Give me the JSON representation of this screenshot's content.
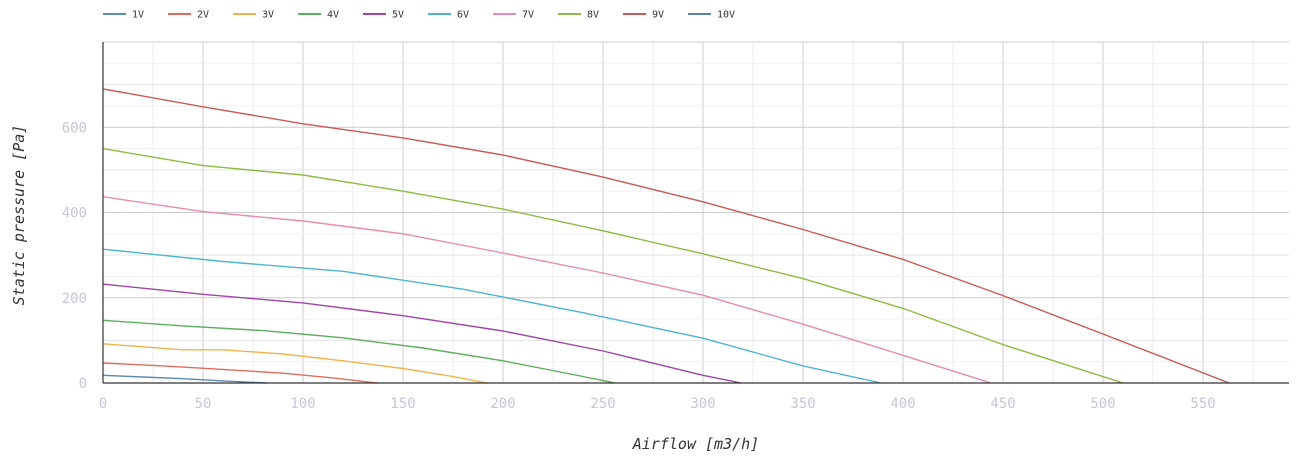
{
  "chart_data": {
    "type": "line",
    "xlabel": "Airflow [m3/h]",
    "ylabel": "Static pressure [Pa]",
    "xlim": [
      0,
      593
    ],
    "ylim": [
      0,
      800
    ],
    "x_ticks": [
      0,
      50,
      100,
      150,
      200,
      250,
      300,
      350,
      400,
      450,
      500,
      550
    ],
    "y_ticks": [
      0,
      200,
      400,
      600
    ],
    "grid": true,
    "legend_position": "top-left",
    "series": [
      {
        "name": "1V",
        "color": "#5b8ab5",
        "points": [
          [
            0,
            18
          ],
          [
            20,
            14
          ],
          [
            40,
            10
          ],
          [
            60,
            5
          ],
          [
            82,
            0
          ]
        ]
      },
      {
        "name": "2V",
        "color": "#e06c5f",
        "points": [
          [
            0,
            47
          ],
          [
            30,
            40
          ],
          [
            60,
            32
          ],
          [
            90,
            23
          ],
          [
            115,
            12
          ],
          [
            137,
            0
          ]
        ]
      },
      {
        "name": "3V",
        "color": "#f0b34c",
        "points": [
          [
            0,
            92
          ],
          [
            40,
            78
          ],
          [
            60,
            78
          ],
          [
            90,
            68
          ],
          [
            120,
            52
          ],
          [
            150,
            34
          ],
          [
            175,
            15
          ],
          [
            192,
            0
          ]
        ]
      },
      {
        "name": "4V",
        "color": "#5cae5c",
        "points": [
          [
            0,
            147
          ],
          [
            40,
            134
          ],
          [
            80,
            123
          ],
          [
            120,
            106
          ],
          [
            160,
            82
          ],
          [
            200,
            52
          ],
          [
            235,
            20
          ],
          [
            256,
            0
          ]
        ]
      },
      {
        "name": "5V",
        "color": "#a045a8",
        "points": [
          [
            0,
            232
          ],
          [
            50,
            208
          ],
          [
            100,
            188
          ],
          [
            150,
            158
          ],
          [
            200,
            122
          ],
          [
            250,
            75
          ],
          [
            300,
            18
          ],
          [
            319,
            0
          ]
        ]
      },
      {
        "name": "6V",
        "color": "#4fb4d0",
        "points": [
          [
            0,
            314
          ],
          [
            60,
            285
          ],
          [
            120,
            262
          ],
          [
            180,
            220
          ],
          [
            240,
            165
          ],
          [
            300,
            105
          ],
          [
            350,
            40
          ],
          [
            389,
            0
          ]
        ]
      },
      {
        "name": "7V",
        "color": "#e88bb0",
        "points": [
          [
            0,
            437
          ],
          [
            50,
            402
          ],
          [
            100,
            380
          ],
          [
            150,
            350
          ],
          [
            200,
            305
          ],
          [
            250,
            258
          ],
          [
            300,
            206
          ],
          [
            350,
            138
          ],
          [
            400,
            65
          ],
          [
            444,
            0
          ]
        ]
      },
      {
        "name": "8V",
        "color": "#8fba43",
        "points": [
          [
            0,
            550
          ],
          [
            50,
            510
          ],
          [
            100,
            488
          ],
          [
            150,
            450
          ],
          [
            200,
            408
          ],
          [
            250,
            357
          ],
          [
            300,
            303
          ],
          [
            350,
            245
          ],
          [
            400,
            175
          ],
          [
            450,
            90
          ],
          [
            510,
            0
          ]
        ]
      },
      {
        "name": "9V",
        "color": "#c95a57",
        "points": [
          [
            0,
            690
          ],
          [
            50,
            648
          ],
          [
            100,
            608
          ],
          [
            150,
            575
          ],
          [
            200,
            535
          ],
          [
            250,
            483
          ],
          [
            300,
            425
          ],
          [
            350,
            360
          ],
          [
            400,
            290
          ],
          [
            450,
            205
          ],
          [
            500,
            115
          ],
          [
            563,
            0
          ]
        ]
      },
      {
        "name": "10V",
        "color": "#5b80a8",
        "points": []
      }
    ]
  }
}
